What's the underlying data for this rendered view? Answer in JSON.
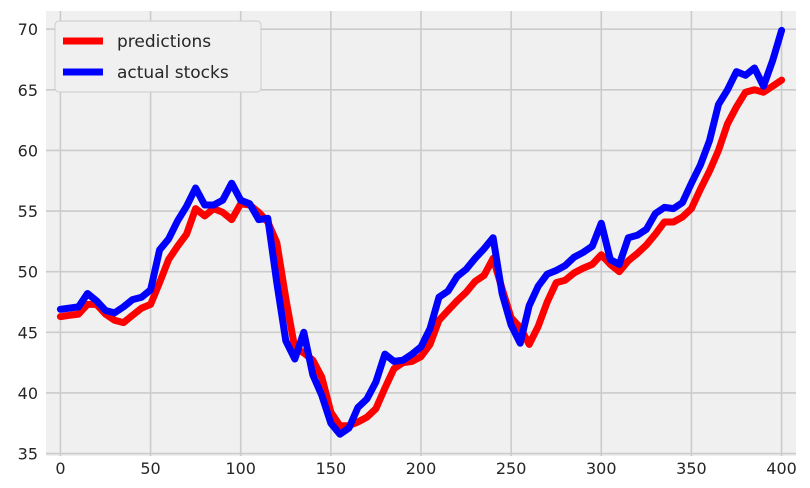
{
  "chart_data": {
    "type": "line",
    "title": "",
    "xlabel": "",
    "ylabel": "",
    "xlim": [
      -8,
      408
    ],
    "ylim": [
      34.8,
      71.5
    ],
    "x_ticks": [
      0,
      50,
      100,
      150,
      200,
      250,
      300,
      350,
      400
    ],
    "y_ticks": [
      35,
      40,
      45,
      50,
      55,
      60,
      65,
      70
    ],
    "grid": true,
    "legend": {
      "placement": "top-left",
      "entries": [
        "predictions",
        "actual stocks"
      ]
    },
    "series": [
      {
        "name": "predictions",
        "color": "#ff0000",
        "x": [
          0,
          5,
          10,
          15,
          20,
          25,
          30,
          35,
          40,
          45,
          50,
          55,
          60,
          65,
          70,
          75,
          80,
          85,
          90,
          95,
          100,
          105,
          110,
          115,
          120,
          125,
          130,
          135,
          140,
          145,
          150,
          155,
          160,
          165,
          170,
          175,
          180,
          185,
          190,
          195,
          200,
          205,
          210,
          215,
          220,
          225,
          230,
          235,
          240,
          245,
          250,
          255,
          260,
          265,
          270,
          275,
          280,
          285,
          290,
          295,
          300,
          305,
          310,
          315,
          320,
          325,
          330,
          335,
          340,
          345,
          350,
          355,
          360,
          365,
          370,
          375,
          380,
          385,
          390,
          395,
          400
        ],
        "values": [
          46.3,
          46.4,
          46.5,
          47.3,
          47.3,
          46.5,
          46.0,
          45.8,
          46.4,
          47.0,
          47.3,
          49.1,
          51.0,
          52.1,
          53.1,
          55.2,
          54.6,
          55.2,
          54.9,
          54.3,
          55.6,
          55.5,
          54.9,
          54.1,
          52.4,
          47.8,
          43.7,
          43.3,
          42.7,
          41.3,
          38.4,
          37.3,
          37.3,
          37.6,
          38.0,
          38.7,
          40.4,
          42.0,
          42.5,
          42.6,
          43.0,
          44.0,
          46.0,
          46.8,
          47.6,
          48.3,
          49.2,
          49.7,
          51.1,
          48.6,
          46.2,
          45.4,
          44.0,
          45.5,
          47.5,
          49.1,
          49.3,
          49.9,
          50.3,
          50.6,
          51.4,
          50.6,
          50.0,
          50.9,
          51.5,
          52.2,
          53.1,
          54.1,
          54.1,
          54.5,
          55.2,
          56.8,
          58.3,
          60.0,
          62.2,
          63.6,
          64.8,
          65.0,
          64.8,
          65.3,
          65.8
        ]
      },
      {
        "name": "actual stocks",
        "color": "#0000ff",
        "x": [
          0,
          5,
          10,
          15,
          20,
          25,
          30,
          35,
          40,
          45,
          50,
          55,
          60,
          65,
          70,
          75,
          80,
          85,
          90,
          95,
          100,
          105,
          110,
          115,
          120,
          125,
          130,
          135,
          140,
          145,
          150,
          155,
          160,
          165,
          170,
          175,
          180,
          185,
          190,
          195,
          200,
          205,
          210,
          215,
          220,
          225,
          230,
          235,
          240,
          245,
          250,
          255,
          260,
          265,
          270,
          275,
          280,
          285,
          290,
          295,
          300,
          305,
          310,
          315,
          320,
          325,
          330,
          335,
          340,
          345,
          350,
          355,
          360,
          365,
          370,
          375,
          380,
          385,
          390,
          395,
          400
        ],
        "values": [
          46.9,
          47.0,
          47.1,
          48.2,
          47.6,
          46.8,
          46.6,
          47.1,
          47.7,
          47.9,
          48.5,
          51.8,
          52.7,
          54.2,
          55.4,
          56.9,
          55.5,
          55.5,
          55.9,
          57.3,
          55.9,
          55.6,
          54.3,
          54.4,
          49.1,
          44.3,
          42.8,
          45.0,
          41.5,
          39.8,
          37.5,
          36.6,
          37.1,
          38.8,
          39.5,
          40.9,
          43.2,
          42.6,
          42.7,
          43.2,
          43.8,
          45.3,
          47.9,
          48.4,
          49.6,
          50.2,
          51.1,
          51.9,
          52.8,
          48.2,
          45.6,
          44.1,
          47.2,
          48.8,
          49.8,
          50.1,
          50.5,
          51.2,
          51.6,
          52.1,
          54.0,
          51.0,
          50.6,
          52.8,
          53.0,
          53.5,
          54.8,
          55.3,
          55.2,
          55.7,
          57.3,
          58.8,
          60.8,
          63.8,
          65.0,
          66.5,
          66.2,
          66.8,
          65.3,
          67.4,
          69.9
        ]
      }
    ]
  }
}
